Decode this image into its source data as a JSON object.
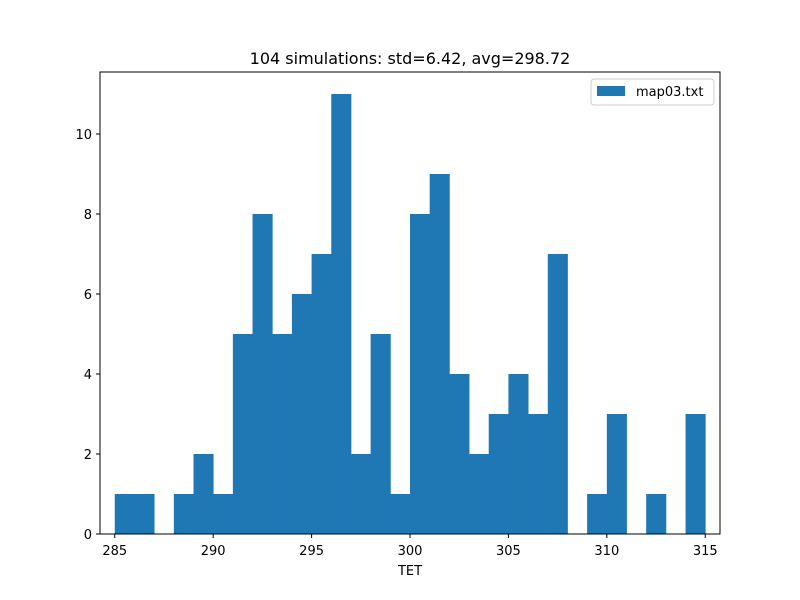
{
  "chart_data": {
    "type": "bar",
    "title": "104 simulations: std=6.42, avg=298.72",
    "xlabel": "TET",
    "ylabel": "",
    "bin_start": 285.0,
    "bin_width": 1.0,
    "values": [
      1,
      1,
      0,
      1,
      2,
      1,
      5,
      8,
      5,
      6,
      7,
      11,
      2,
      5,
      1,
      8,
      9,
      4,
      2,
      3,
      4,
      3,
      7,
      0,
      1,
      3,
      0,
      1,
      0,
      3
    ],
    "xlim": [
      284.25,
      315.75
    ],
    "ylim": [
      0,
      11.55
    ],
    "x_ticks": [
      285,
      290,
      295,
      300,
      305,
      310,
      315
    ],
    "y_ticks": [
      0,
      2,
      4,
      6,
      8,
      10
    ],
    "legend": {
      "placement": "top-right",
      "entries": [
        {
          "label": "map03.txt",
          "color": "#1f77b4"
        }
      ]
    },
    "grid": false,
    "bar_color": "#1f77b4"
  }
}
